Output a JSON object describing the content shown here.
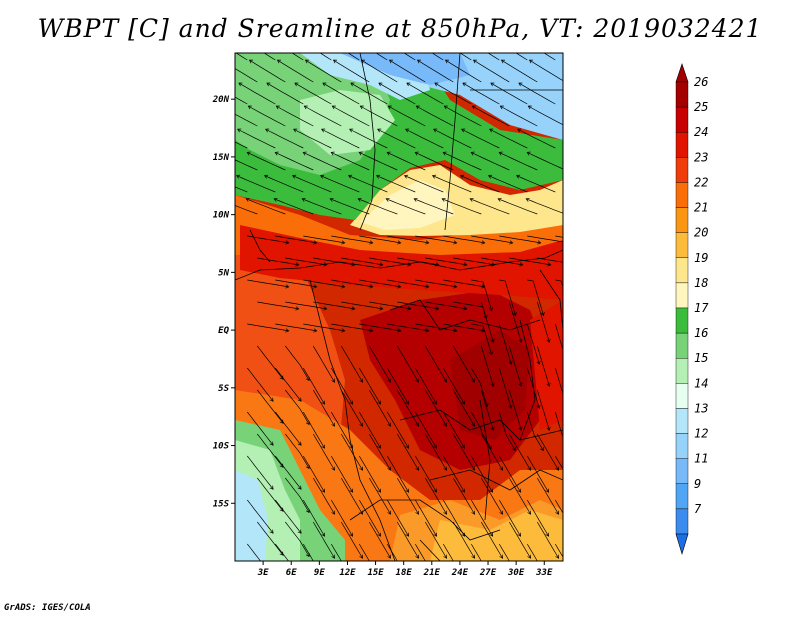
{
  "title": "WBPT [C] and Sreamline at 850hPa, VT: 2019032421",
  "credit": "GrADS: IGES/COLA",
  "map": {
    "lat_range": [
      -20,
      24
    ],
    "lon_range": [
      0,
      35
    ],
    "lat_ticks": [
      {
        "value": 20,
        "label": "20N"
      },
      {
        "value": 15,
        "label": "15N"
      },
      {
        "value": 10,
        "label": "10N"
      },
      {
        "value": 5,
        "label": "5N"
      },
      {
        "value": 0,
        "label": "EQ"
      },
      {
        "value": -5,
        "label": "5S"
      },
      {
        "value": -10,
        "label": "10S"
      },
      {
        "value": -15,
        "label": "15S"
      }
    ],
    "lon_ticks": [
      {
        "value": 3,
        "label": "3E"
      },
      {
        "value": 6,
        "label": "6E"
      },
      {
        "value": 9,
        "label": "9E"
      },
      {
        "value": 12,
        "label": "12E"
      },
      {
        "value": 15,
        "label": "15E"
      },
      {
        "value": 18,
        "label": "18E"
      },
      {
        "value": 21,
        "label": "21E"
      },
      {
        "value": 24,
        "label": "24E"
      },
      {
        "value": 27,
        "label": "27E"
      },
      {
        "value": 30,
        "label": "30E"
      },
      {
        "value": 33,
        "label": "33E"
      }
    ]
  },
  "colorbar": {
    "levels": [
      {
        "label": "26",
        "color": "#a50000"
      },
      {
        "label": "25",
        "color": "#c80000"
      },
      {
        "label": "24",
        "color": "#e11400"
      },
      {
        "label": "23",
        "color": "#f03c0a"
      },
      {
        "label": "22",
        "color": "#fa6e0a"
      },
      {
        "label": "21",
        "color": "#fa9614"
      },
      {
        "label": "20",
        "color": "#fdbb3c"
      },
      {
        "label": "19",
        "color": "#fde68c"
      },
      {
        "label": "18",
        "color": "#fff5be"
      },
      {
        "label": "17",
        "color": "#3cbc3c"
      },
      {
        "label": "16",
        "color": "#78d278"
      },
      {
        "label": "15",
        "color": "#b4f0b4"
      },
      {
        "label": "14",
        "color": "#e6fff0"
      },
      {
        "label": "13",
        "color": "#b4e6fa"
      },
      {
        "label": "12",
        "color": "#96d2fa"
      },
      {
        "label": "11",
        "color": "#78b9fa"
      },
      {
        "label": "9",
        "color": "#50a5f5"
      },
      {
        "label": "7",
        "color": "#3c8cf0"
      }
    ],
    "bottom_color": "#1e6ee6"
  }
}
